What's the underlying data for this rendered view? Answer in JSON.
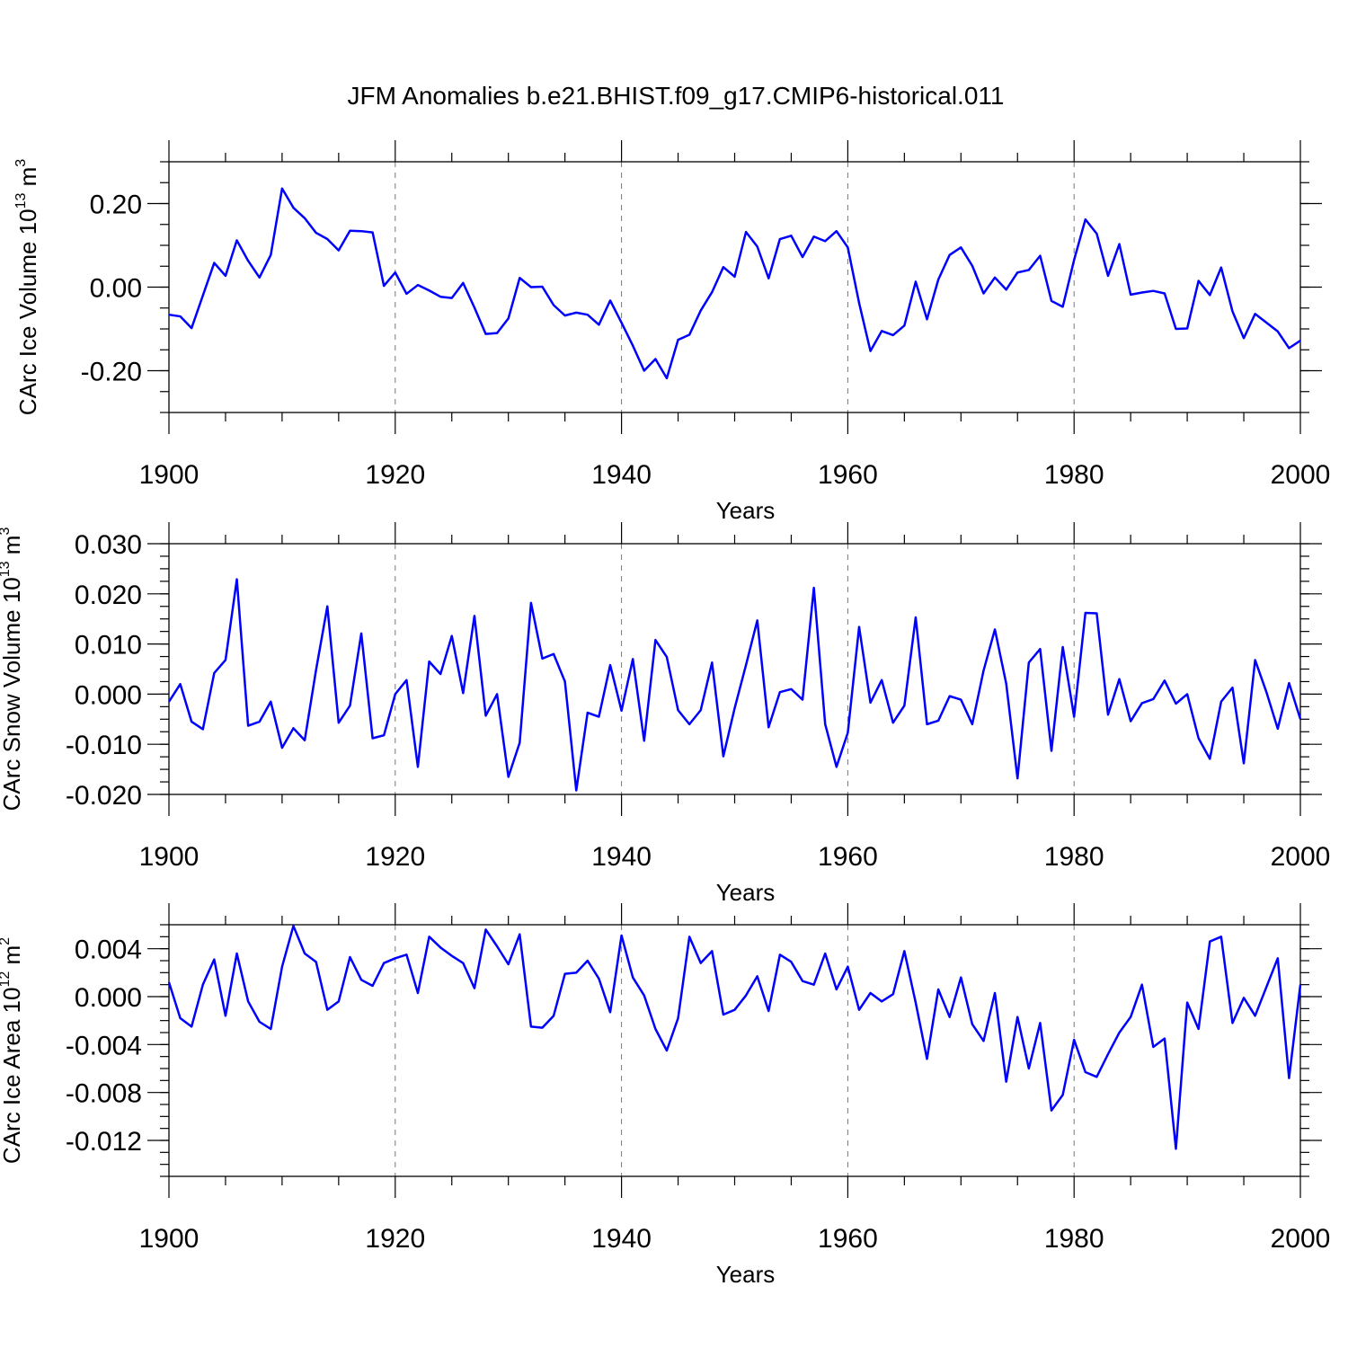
{
  "title": "JFM Anomalies b.e21.BHIST.f09_g17.CMIP6-historical.011",
  "series_color": "#0000ff",
  "chart_data": [
    {
      "type": "line",
      "name": "ice-volume",
      "ylabel": {
        "text": "CArc Ice Volume 10",
        "sup": "13",
        "unit": " m",
        "unit_sup": "3"
      },
      "xlabel": "Years",
      "xlim": [
        1900,
        2000
      ],
      "ylim": [
        -0.3,
        0.3
      ],
      "yticks": [
        -0.2,
        0.0,
        0.2
      ],
      "ytick_labels": [
        "-0.20",
        "0.00",
        "0.20"
      ],
      "ytick_minor": 0.05,
      "xticks": [
        1900,
        1920,
        1940,
        1960,
        1980,
        2000
      ],
      "xtick_labels": [
        "1900",
        "1920",
        "1940",
        "1960",
        "1980",
        "2000"
      ],
      "grid_x": [
        1920,
        1940,
        1960,
        1980
      ],
      "x_start": 1900,
      "values": [
        -0.066,
        -0.07,
        -0.098,
        -0.02,
        0.058,
        0.027,
        0.112,
        0.063,
        0.023,
        0.077,
        0.236,
        0.19,
        0.165,
        0.13,
        0.115,
        0.088,
        0.135,
        0.134,
        0.131,
        0.003,
        0.035,
        -0.016,
        0.005,
        -0.008,
        -0.023,
        -0.026,
        0.01,
        -0.049,
        -0.112,
        -0.11,
        -0.075,
        0.022,
        0.0,
        0.001,
        -0.043,
        -0.068,
        -0.061,
        -0.066,
        -0.09,
        -0.032,
        -0.085,
        -0.14,
        -0.2,
        -0.172,
        -0.218,
        -0.126,
        -0.114,
        -0.056,
        -0.012,
        0.048,
        0.025,
        0.132,
        0.097,
        0.021,
        0.115,
        0.123,
        0.072,
        0.121,
        0.11,
        0.134,
        0.095,
        -0.038,
        -0.153,
        -0.105,
        -0.115,
        -0.092,
        0.013,
        -0.077,
        0.018,
        0.077,
        0.095,
        0.051,
        -0.015,
        0.023,
        -0.006,
        0.035,
        0.041,
        0.075,
        -0.033,
        -0.047,
        0.065,
        0.162,
        0.128,
        0.027,
        0.103,
        -0.018,
        -0.013,
        -0.009,
        -0.015,
        -0.1,
        -0.099,
        0.015,
        -0.019,
        0.047,
        -0.058,
        -0.122,
        -0.064,
        -0.085,
        -0.106,
        -0.146,
        -0.128
      ]
    },
    {
      "type": "line",
      "name": "snow-volume",
      "ylabel": {
        "text": "CArc Snow Volume 10",
        "sup": "13",
        "unit": " m",
        "unit_sup": "3"
      },
      "xlabel": "Years",
      "xlim": [
        1900,
        2000
      ],
      "ylim": [
        -0.02,
        0.03
      ],
      "yticks": [
        -0.02,
        -0.01,
        0.0,
        0.01,
        0.02,
        0.03
      ],
      "ytick_labels": [
        "-0.020",
        "-0.010",
        "0.000",
        "0.010",
        "0.020",
        "0.030"
      ],
      "ytick_minor": 0.0025,
      "xticks": [
        1900,
        1920,
        1940,
        1960,
        1980,
        2000
      ],
      "xtick_labels": [
        "1900",
        "1920",
        "1940",
        "1960",
        "1980",
        "2000"
      ],
      "grid_x": [
        1920,
        1940,
        1960,
        1980
      ],
      "x_start": 1900,
      "values": [
        -0.0015,
        0.002,
        -0.0055,
        -0.007,
        0.0042,
        0.0068,
        0.0229,
        -0.0063,
        -0.0055,
        -0.0015,
        -0.0107,
        -0.0068,
        -0.0092,
        0.0048,
        0.0175,
        -0.0057,
        -0.0023,
        0.0121,
        -0.0088,
        -0.0082,
        0.0,
        0.0028,
        -0.0145,
        0.0065,
        0.004,
        0.0116,
        0.0002,
        0.0156,
        -0.0043,
        0.0,
        -0.0165,
        -0.0097,
        0.0182,
        0.0071,
        0.008,
        0.0025,
        -0.0192,
        -0.0037,
        -0.0045,
        0.0058,
        -0.0033,
        0.007,
        -0.0093,
        0.0108,
        0.0074,
        -0.0032,
        -0.006,
        -0.0032,
        0.0063,
        -0.0124,
        -0.0028,
        0.0058,
        0.0147,
        -0.0066,
        0.0004,
        0.001,
        -0.0011,
        0.0212,
        -0.006,
        -0.0145,
        -0.0077,
        0.0134,
        -0.0017,
        0.0028,
        -0.0057,
        -0.0023,
        0.0153,
        -0.006,
        -0.0053,
        -0.0004,
        -0.0011,
        -0.006,
        0.0047,
        0.0129,
        0.0021,
        -0.0168,
        0.0063,
        0.009,
        -0.0113,
        0.0094,
        -0.0045,
        0.0162,
        0.0161,
        -0.0041,
        0.003,
        -0.0054,
        -0.0018,
        -0.001,
        0.0027,
        -0.0019,
        0.0,
        -0.0088,
        -0.0129,
        -0.0015,
        0.0013,
        -0.0138,
        0.0068,
        0.0004,
        -0.0069,
        0.0022,
        -0.005
      ]
    },
    {
      "type": "line",
      "name": "ice-area",
      "ylabel": {
        "text": "CArc Ice Area 10",
        "sup": "12",
        "unit": " m",
        "unit_sup": "2"
      },
      "xlabel": "Years",
      "xlim": [
        1900,
        2000
      ],
      "ylim": [
        -0.015,
        0.006
      ],
      "yticks": [
        -0.012,
        -0.008,
        -0.004,
        0.0,
        0.004
      ],
      "ytick_labels": [
        "-0.012",
        "-0.008",
        "-0.004",
        "0.000",
        "0.004"
      ],
      "ytick_minor": 0.001,
      "xticks": [
        1900,
        1920,
        1940,
        1960,
        1980,
        2000
      ],
      "xtick_labels": [
        "1900",
        "1920",
        "1940",
        "1960",
        "1980",
        "2000"
      ],
      "grid_x": [
        1920,
        1940,
        1960,
        1980
      ],
      "x_start": 1900,
      "values": [
        0.0012,
        -0.0018,
        -0.0025,
        0.001,
        0.0031,
        -0.0016,
        0.0036,
        -0.0004,
        -0.0021,
        -0.0027,
        0.0025,
        0.0059,
        0.0036,
        0.0029,
        -0.0011,
        -0.0004,
        0.0033,
        0.0014,
        0.0009,
        0.0028,
        0.0032,
        0.0035,
        0.0003,
        0.005,
        0.0041,
        0.0034,
        0.0028,
        0.0007,
        0.0056,
        0.0042,
        0.0027,
        0.0052,
        -0.0025,
        -0.0026,
        -0.0016,
        0.0019,
        0.002,
        0.003,
        0.0015,
        -0.0013,
        0.0051,
        0.0016,
        0.0001,
        -0.0027,
        -0.0045,
        -0.0018,
        0.005,
        0.0028,
        0.0038,
        -0.0015,
        -0.0011,
        0.0001,
        0.0017,
        -0.0012,
        0.0035,
        0.0029,
        0.0013,
        0.001,
        0.0036,
        0.0006,
        0.0025,
        -0.0011,
        0.0003,
        -0.0004,
        0.0002,
        0.0038,
        -0.0005,
        -0.0052,
        0.0006,
        -0.0017,
        0.0016,
        -0.0023,
        -0.0037,
        0.0003,
        -0.0071,
        -0.0017,
        -0.006,
        -0.0022,
        -0.0095,
        -0.0082,
        -0.0036,
        -0.0063,
        -0.0067,
        -0.0048,
        -0.003,
        -0.0017,
        0.001,
        -0.0042,
        -0.0035,
        -0.0127,
        -0.0005,
        -0.0027,
        0.0046,
        0.005,
        -0.0022,
        -0.0001,
        -0.0016,
        0.0008,
        0.0032,
        -0.0068,
        0.001
      ]
    }
  ]
}
